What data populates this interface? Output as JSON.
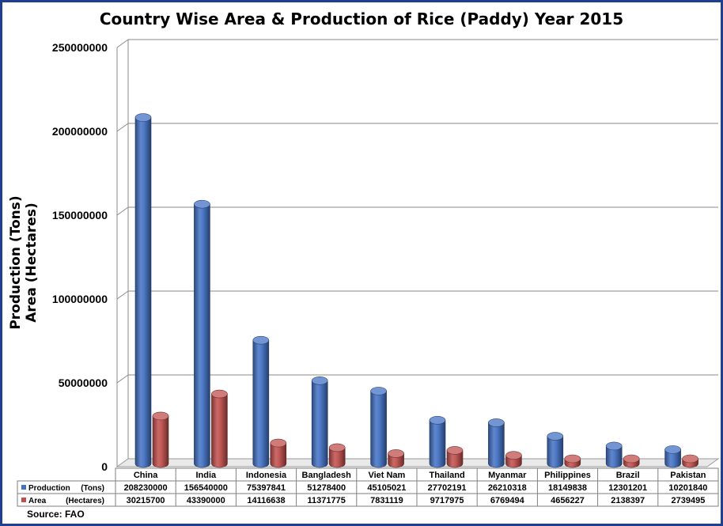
{
  "chart_data": {
    "type": "bar",
    "title": "Country Wise Area & Production of Rice (Paddy) Year 2015",
    "ylabel_line1": "Production (Tons)",
    "ylabel_line2": "Area (Hectares)",
    "ylim": [
      0,
      250000000
    ],
    "yticks": [
      "0",
      "50000000",
      "100000000",
      "150000000",
      "200000000",
      "250000000"
    ],
    "ytick_values": [
      0,
      50000000,
      100000000,
      150000000,
      200000000,
      250000000
    ],
    "grid": true,
    "categories": [
      "China",
      "India",
      "Indonesia",
      "Bangladesh",
      "Viet Nam",
      "Thailand",
      "Myanmar",
      "Philippines",
      "Brazil",
      "Pakistan"
    ],
    "series": [
      {
        "name": "Production",
        "unit": "(Tons)",
        "color": "#4472c4",
        "values": [
          208230000,
          156540000,
          75397841,
          51278400,
          45105021,
          27702191,
          26210318,
          18149838,
          12301201,
          10201840
        ],
        "labels": [
          "208230000",
          "156540000",
          "75397841",
          "51278400",
          "45105021",
          "27702191",
          "26210318",
          "18149838",
          "12301201",
          "10201840"
        ]
      },
      {
        "name": "Area",
        "unit": "(Hectares)",
        "color": "#c0504d",
        "values": [
          30215700,
          43390000,
          14116638,
          11371775,
          7831119,
          9717975,
          6769494,
          4656227,
          2138397,
          2739495
        ],
        "labels": [
          "30215700",
          "43390000",
          "14116638",
          "11371775",
          "7831119",
          "9717975",
          "6769494",
          "4656227",
          "2138397",
          "2739495"
        ]
      }
    ],
    "source": "Source: FAO"
  }
}
